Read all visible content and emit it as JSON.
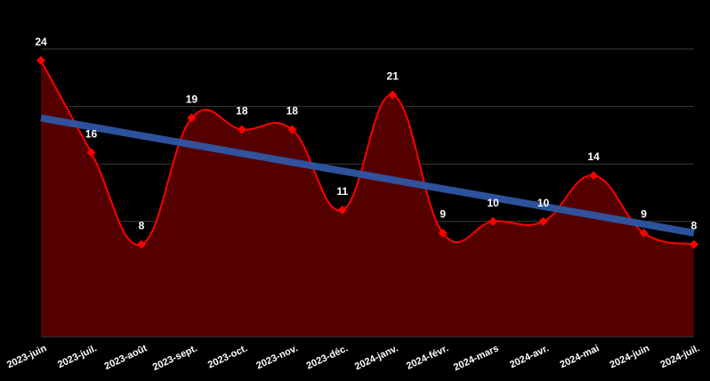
{
  "chart_data": {
    "type": "area",
    "categories": [
      "2023-juin",
      "2023-juil.",
      "2023-août",
      "2023-sept.",
      "2023-oct.",
      "2023-nov.",
      "2023-déc.",
      "2024-janv.",
      "2024-févr.",
      "2024-mars",
      "2024-avr.",
      "2024-mai",
      "2024-juin",
      "2024-juil."
    ],
    "series": [
      {
        "values": [
          24,
          16,
          8,
          19,
          18,
          18,
          11,
          21,
          9,
          10,
          10,
          14,
          9,
          8
        ]
      }
    ],
    "trendline": {
      "start": 19,
      "end": 9
    },
    "ylim": [
      0,
      25
    ],
    "grid": true,
    "data_labels": true,
    "colors": {
      "background": "#000000",
      "line": "#ff0000",
      "area": "#550000",
      "marker": "#ff0000",
      "trend": "#2f56a4",
      "grid": "#3a3a3a",
      "text": "#ffffff"
    }
  }
}
